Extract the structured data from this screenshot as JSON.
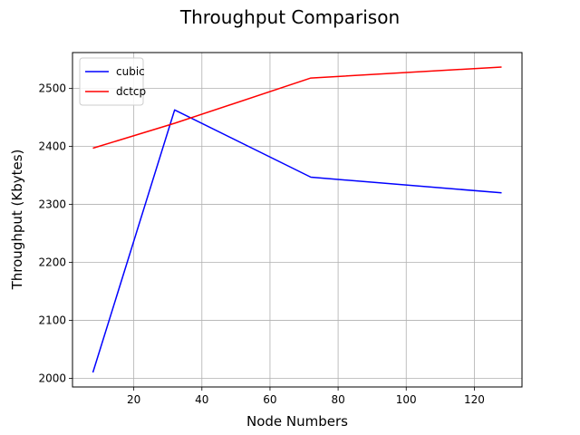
{
  "chart_data": {
    "type": "line",
    "title": "Throughput Comparison",
    "xlabel": "Node Numbers",
    "ylabel": "Throughput (Kbytes)",
    "x": [
      8,
      32,
      72,
      128
    ],
    "series": [
      {
        "name": "cubic",
        "color": "#0000ff",
        "values": [
          2010,
          2463,
          2347,
          2320
        ]
      },
      {
        "name": "dctcp",
        "color": "#ff0000",
        "values": [
          2397,
          2440,
          2518,
          2537
        ]
      }
    ],
    "xlim": [
      2,
      134
    ],
    "ylim": [
      1985,
      2562
    ],
    "xticks": [
      20,
      40,
      60,
      80,
      100,
      120
    ],
    "yticks": [
      2000,
      2100,
      2200,
      2300,
      2400,
      2500
    ],
    "grid": true,
    "legend_position": "top-left"
  }
}
